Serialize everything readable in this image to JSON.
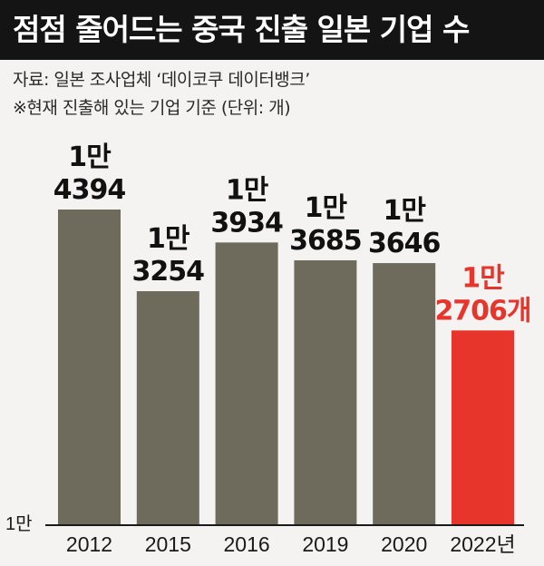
{
  "header": {
    "title": "점점 줄어드는 중국 진출 일본 기업 수",
    "source": "자료: 일본 조사업체 ‘데이코쿠 데이터뱅크’",
    "note": "※현재 진출해 있는 기업 기준 (단위: 개)"
  },
  "colors": {
    "title_bg": "#141414",
    "bar": "#6e6b5d",
    "highlight": "#e8352b",
    "background": "#f4f3f1"
  },
  "chart_data": {
    "type": "bar",
    "title": "점점 줄어드는 중국 진출 일본 기업 수",
    "categories": [
      "2012",
      "2015",
      "2016",
      "2019",
      "2020",
      "2022년"
    ],
    "values": [
      14394,
      13254,
      13934,
      13685,
      13646,
      12706
    ],
    "data_labels": [
      [
        "1만",
        "4394"
      ],
      [
        "1만",
        "3254"
      ],
      [
        "1만",
        "3934"
      ],
      [
        "1만",
        "3685"
      ],
      [
        "1만",
        "3646"
      ],
      [
        "1만",
        "2706개"
      ]
    ],
    "highlight_index": 5,
    "y_tick_label": "1만",
    "ylim": [
      10000,
      14394
    ],
    "grid": false,
    "legend": "none"
  }
}
